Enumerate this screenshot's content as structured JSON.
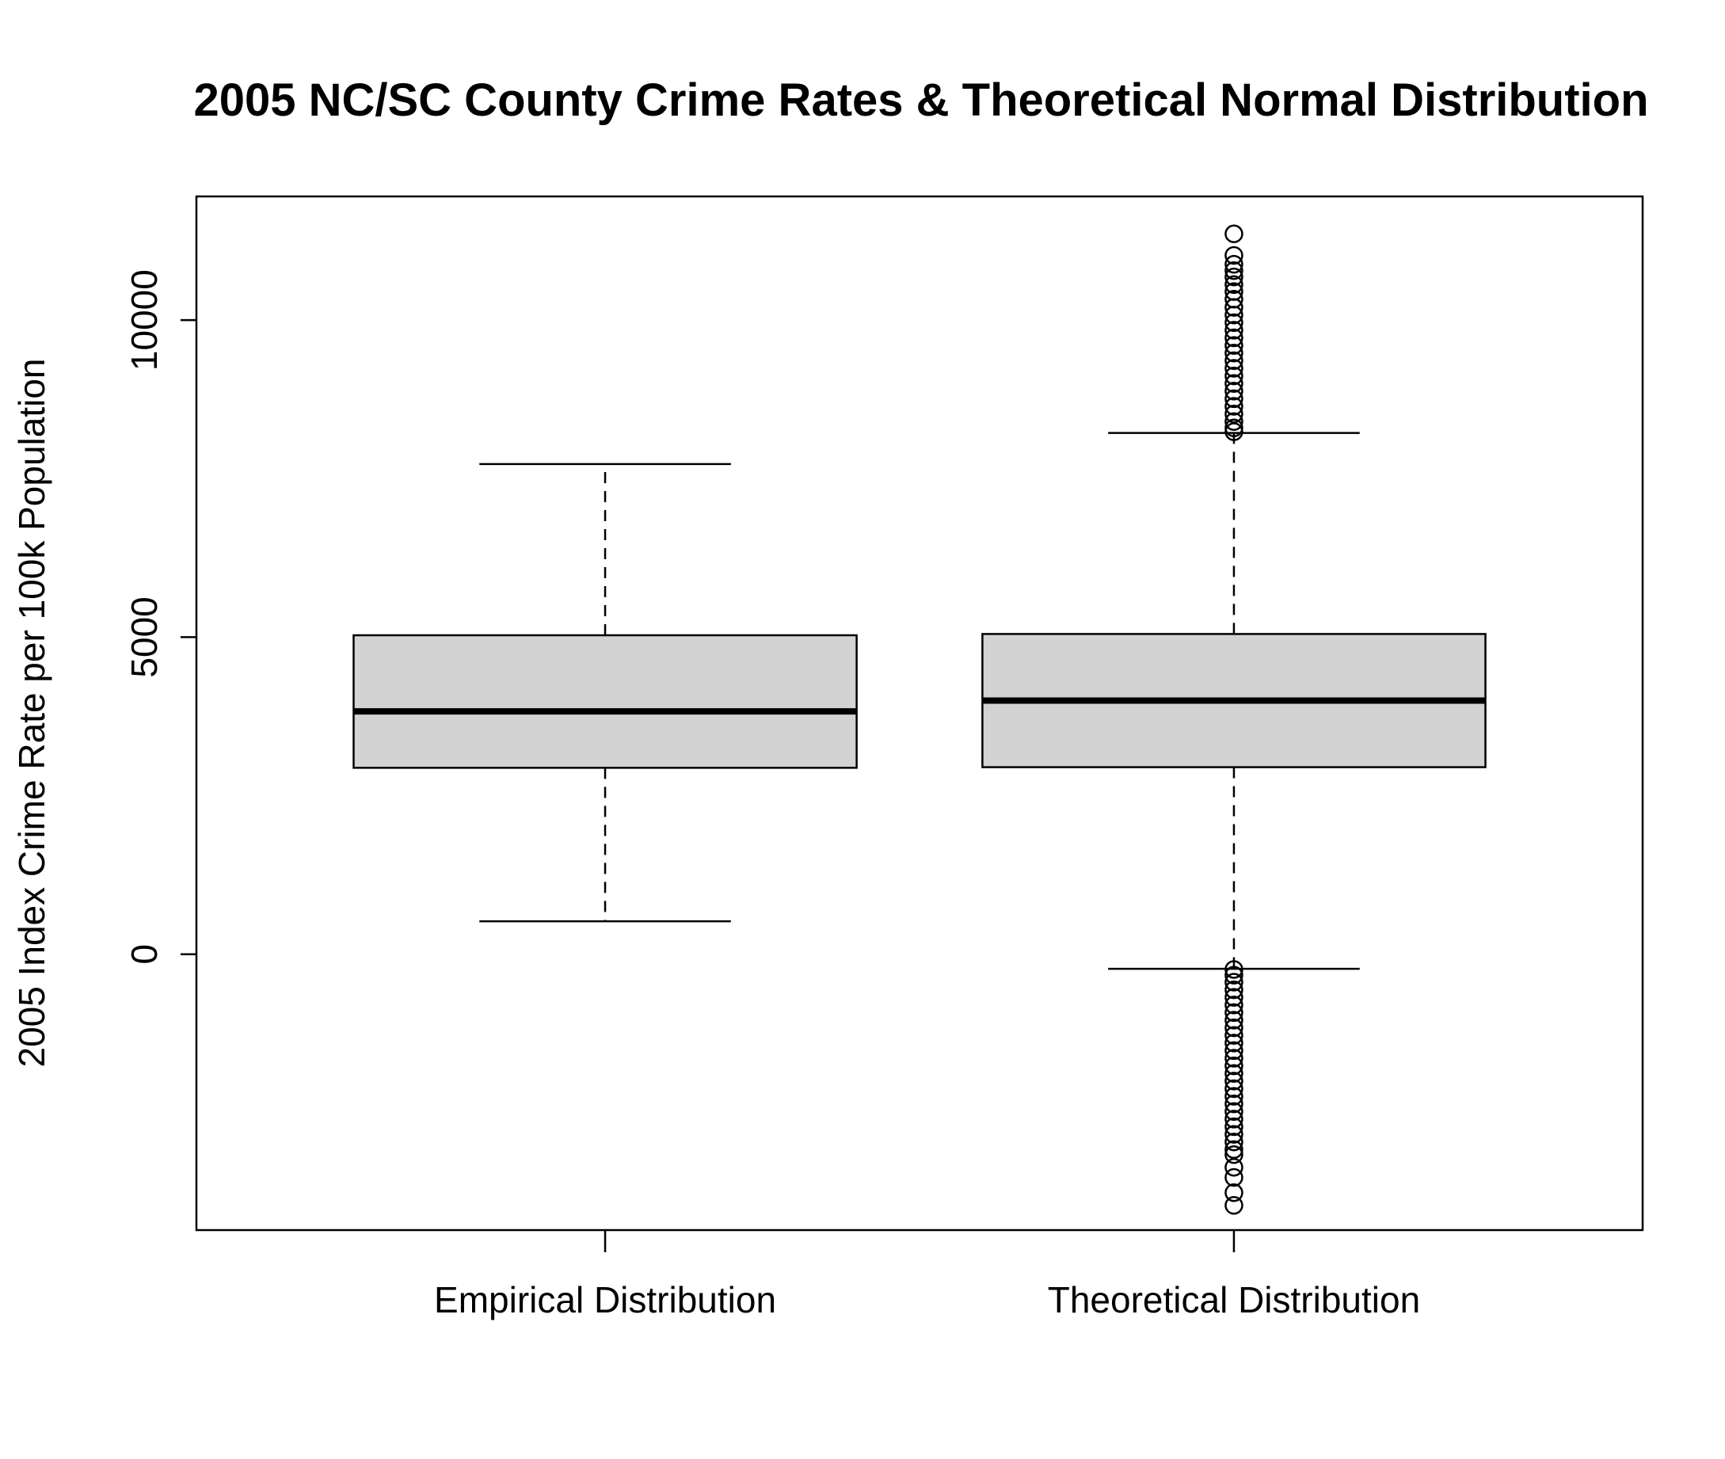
{
  "chart_data": {
    "type": "box",
    "title": "2005 NC/SC County Crime Rates & Theoretical Normal Distribution",
    "xlabel": "",
    "ylabel": "2005 Index Crime Rate per 100k Population",
    "categories": [
      "Empirical Distribution",
      "Theoretical Distribution"
    ],
    "ylim": [
      -4350,
      11950
    ],
    "yticks": [
      0,
      5000,
      10000
    ],
    "ytick_labels": [
      "0",
      "5000",
      "10000"
    ],
    "grid": false,
    "legend": "none",
    "colors": {
      "box_fill": "#d3d3d3",
      "stroke": "#000000",
      "background": "#ffffff"
    },
    "boxes": [
      {
        "category": "Empirical Distribution",
        "whisker_low": 520,
        "q1": 2940,
        "median": 3830,
        "q3": 5030,
        "whisker_high": 7730,
        "outliers": []
      },
      {
        "category": "Theoretical Distribution",
        "whisker_low": -230,
        "q1": 2950,
        "median": 4000,
        "q3": 5050,
        "whisker_high": 8220,
        "outliers": [
          11360,
          11020,
          10880,
          10780,
          10680,
          10560,
          10450,
          10330,
          10200,
          10080,
          9960,
          9840,
          9720,
          9600,
          9480,
          9360,
          9240,
          9120,
          9000,
          8880,
          8760,
          8640,
          8520,
          8400,
          8300,
          8240,
          -240,
          -330,
          -440,
          -560,
          -680,
          -800,
          -920,
          -1040,
          -1160,
          -1280,
          -1400,
          -1520,
          -1640,
          -1760,
          -1880,
          -2000,
          -2120,
          -2240,
          -2360,
          -2480,
          -2600,
          -2720,
          -2840,
          -2960,
          -3080,
          -3160,
          -3360,
          -3520,
          -3760,
          -3960
        ]
      }
    ]
  }
}
